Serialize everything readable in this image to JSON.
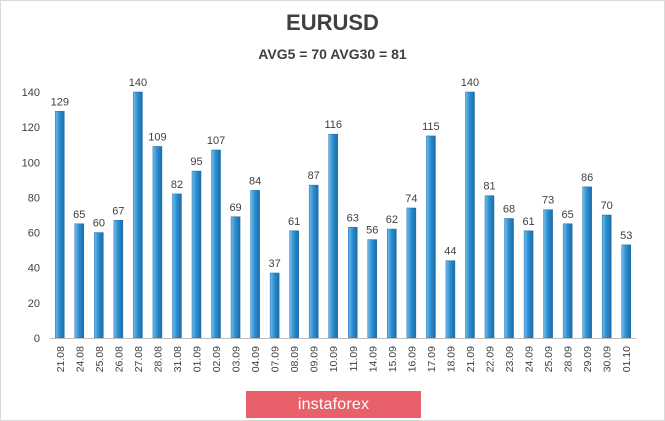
{
  "chart_data": {
    "type": "bar",
    "title": "EURUSD",
    "subtitle": "AVG5 = 70 AVG30 = 81",
    "categories": [
      "21.08",
      "24.08",
      "25.08",
      "26.08",
      "27.08",
      "28.08",
      "31.08",
      "01.09",
      "02.09",
      "03.09",
      "04.09",
      "07.09",
      "08.09",
      "09.09",
      "10.09",
      "11.09",
      "14.09",
      "15.09",
      "16.09",
      "17.09",
      "18.09",
      "21.09",
      "22.09",
      "23.09",
      "24.09",
      "25.09",
      "28.09",
      "29.09",
      "30.09",
      "01.10"
    ],
    "values": [
      129,
      65,
      60,
      67,
      140,
      109,
      82,
      95,
      107,
      69,
      84,
      37,
      61,
      87,
      116,
      63,
      56,
      62,
      74,
      115,
      44,
      140,
      81,
      68,
      61,
      73,
      65,
      86,
      70,
      53
    ],
    "ylim": [
      0,
      140
    ],
    "yticks": [
      0,
      20,
      40,
      60,
      80,
      100,
      120,
      140
    ],
    "xlabel": "",
    "ylabel": "",
    "grid": false,
    "legend": "none",
    "bar_color": "#2e8fd0",
    "bar_color_light": "#6fc0f0",
    "bar_color_dark": "#1c6ba8"
  },
  "watermark": {
    "text": "instaforex",
    "color": "#e8606a"
  }
}
